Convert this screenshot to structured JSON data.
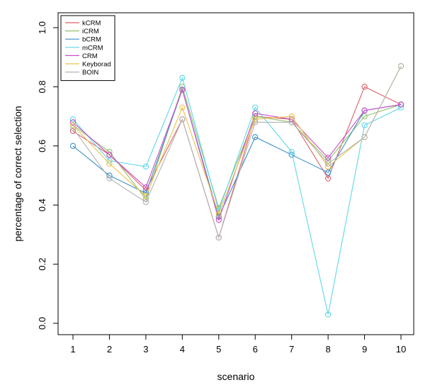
{
  "chart_data": {
    "type": "line",
    "xlabel": "scenario",
    "ylabel": "percentage of correct selection",
    "x": [
      1,
      2,
      3,
      4,
      5,
      6,
      7,
      8,
      9,
      10
    ],
    "x_tick_labels": [
      "1",
      "2",
      "3",
      "4",
      "5",
      "6",
      "7",
      "8",
      "9",
      "10"
    ],
    "ylim": [
      0,
      1
    ],
    "y_ticks": [
      0.0,
      0.2,
      0.4,
      0.6,
      0.8,
      1.0
    ],
    "y_tick_labels": [
      "0.0",
      "0.2",
      "0.4",
      "0.6",
      "0.8",
      "1.0"
    ],
    "grid": false,
    "legend_position": "top-left",
    "markers": "open-circle",
    "series": [
      {
        "name": "kCRM",
        "color": "#d9626b",
        "values": [
          0.65,
          0.57,
          0.45,
          0.69,
          0.29,
          0.7,
          0.69,
          0.49,
          0.8,
          0.74
        ]
      },
      {
        "name": "iCRM",
        "color": "#93c26f",
        "values": [
          0.67,
          0.58,
          0.42,
          0.8,
          0.39,
          0.7,
          0.68,
          0.55,
          0.7,
          0.74
        ]
      },
      {
        "name": "bCRM",
        "color": "#3a8fc8",
        "values": [
          0.6,
          0.5,
          0.44,
          0.79,
          0.36,
          0.63,
          0.57,
          0.51,
          0.72,
          0.74
        ]
      },
      {
        "name": "mCRM",
        "color": "#5fd8e8",
        "values": [
          0.69,
          0.55,
          0.53,
          0.83,
          0.38,
          0.73,
          0.58,
          0.03,
          0.67,
          0.73
        ]
      },
      {
        "name": "CRM",
        "color": "#cc4fc8",
        "values": [
          0.68,
          0.57,
          0.46,
          0.79,
          0.35,
          0.71,
          0.69,
          0.56,
          0.72,
          0.74
        ]
      },
      {
        "name": "Keyborad",
        "color": "#e8c24a",
        "values": [
          0.67,
          0.54,
          0.43,
          0.73,
          0.37,
          0.69,
          0.7,
          0.53,
          0.63,
          0.87
        ]
      },
      {
        "name": "BOIN",
        "color": "#b3b3b3",
        "values": [
          0.66,
          0.49,
          0.41,
          0.69,
          0.29,
          0.68,
          0.68,
          0.54,
          0.63,
          0.87
        ]
      }
    ]
  }
}
